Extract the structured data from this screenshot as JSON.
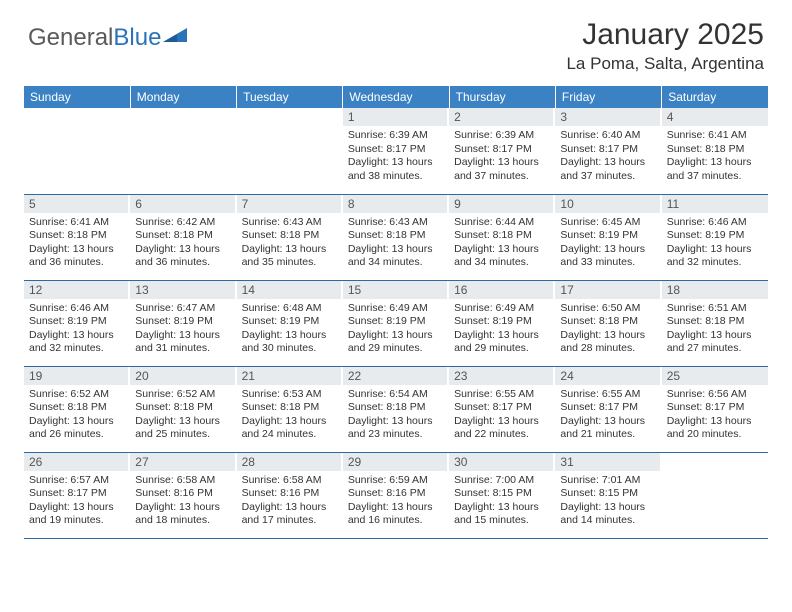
{
  "logo": {
    "text1": "General",
    "text2": "Blue"
  },
  "title": "January 2025",
  "location": "La Poma, Salta, Argentina",
  "theme": {
    "header_bg": "#3b82c4",
    "header_fg": "#ffffff",
    "daynum_bg": "#e8ebee",
    "border_color": "#2b6aa8",
    "logo_gray": "#5a5a5a",
    "logo_blue": "#2b73b8"
  },
  "weekdays": [
    "Sunday",
    "Monday",
    "Tuesday",
    "Wednesday",
    "Thursday",
    "Friday",
    "Saturday"
  ],
  "weeks": [
    [
      {
        "n": "",
        "lines": []
      },
      {
        "n": "",
        "lines": []
      },
      {
        "n": "",
        "lines": []
      },
      {
        "n": "1",
        "lines": [
          "Sunrise: 6:39 AM",
          "Sunset: 8:17 PM",
          "Daylight: 13 hours",
          "and 38 minutes."
        ]
      },
      {
        "n": "2",
        "lines": [
          "Sunrise: 6:39 AM",
          "Sunset: 8:17 PM",
          "Daylight: 13 hours",
          "and 37 minutes."
        ]
      },
      {
        "n": "3",
        "lines": [
          "Sunrise: 6:40 AM",
          "Sunset: 8:17 PM",
          "Daylight: 13 hours",
          "and 37 minutes."
        ]
      },
      {
        "n": "4",
        "lines": [
          "Sunrise: 6:41 AM",
          "Sunset: 8:18 PM",
          "Daylight: 13 hours",
          "and 37 minutes."
        ]
      }
    ],
    [
      {
        "n": "5",
        "lines": [
          "Sunrise: 6:41 AM",
          "Sunset: 8:18 PM",
          "Daylight: 13 hours",
          "and 36 minutes."
        ]
      },
      {
        "n": "6",
        "lines": [
          "Sunrise: 6:42 AM",
          "Sunset: 8:18 PM",
          "Daylight: 13 hours",
          "and 36 minutes."
        ]
      },
      {
        "n": "7",
        "lines": [
          "Sunrise: 6:43 AM",
          "Sunset: 8:18 PM",
          "Daylight: 13 hours",
          "and 35 minutes."
        ]
      },
      {
        "n": "8",
        "lines": [
          "Sunrise: 6:43 AM",
          "Sunset: 8:18 PM",
          "Daylight: 13 hours",
          "and 34 minutes."
        ]
      },
      {
        "n": "9",
        "lines": [
          "Sunrise: 6:44 AM",
          "Sunset: 8:18 PM",
          "Daylight: 13 hours",
          "and 34 minutes."
        ]
      },
      {
        "n": "10",
        "lines": [
          "Sunrise: 6:45 AM",
          "Sunset: 8:19 PM",
          "Daylight: 13 hours",
          "and 33 minutes."
        ]
      },
      {
        "n": "11",
        "lines": [
          "Sunrise: 6:46 AM",
          "Sunset: 8:19 PM",
          "Daylight: 13 hours",
          "and 32 minutes."
        ]
      }
    ],
    [
      {
        "n": "12",
        "lines": [
          "Sunrise: 6:46 AM",
          "Sunset: 8:19 PM",
          "Daylight: 13 hours",
          "and 32 minutes."
        ]
      },
      {
        "n": "13",
        "lines": [
          "Sunrise: 6:47 AM",
          "Sunset: 8:19 PM",
          "Daylight: 13 hours",
          "and 31 minutes."
        ]
      },
      {
        "n": "14",
        "lines": [
          "Sunrise: 6:48 AM",
          "Sunset: 8:19 PM",
          "Daylight: 13 hours",
          "and 30 minutes."
        ]
      },
      {
        "n": "15",
        "lines": [
          "Sunrise: 6:49 AM",
          "Sunset: 8:19 PM",
          "Daylight: 13 hours",
          "and 29 minutes."
        ]
      },
      {
        "n": "16",
        "lines": [
          "Sunrise: 6:49 AM",
          "Sunset: 8:19 PM",
          "Daylight: 13 hours",
          "and 29 minutes."
        ]
      },
      {
        "n": "17",
        "lines": [
          "Sunrise: 6:50 AM",
          "Sunset: 8:18 PM",
          "Daylight: 13 hours",
          "and 28 minutes."
        ]
      },
      {
        "n": "18",
        "lines": [
          "Sunrise: 6:51 AM",
          "Sunset: 8:18 PM",
          "Daylight: 13 hours",
          "and 27 minutes."
        ]
      }
    ],
    [
      {
        "n": "19",
        "lines": [
          "Sunrise: 6:52 AM",
          "Sunset: 8:18 PM",
          "Daylight: 13 hours",
          "and 26 minutes."
        ]
      },
      {
        "n": "20",
        "lines": [
          "Sunrise: 6:52 AM",
          "Sunset: 8:18 PM",
          "Daylight: 13 hours",
          "and 25 minutes."
        ]
      },
      {
        "n": "21",
        "lines": [
          "Sunrise: 6:53 AM",
          "Sunset: 8:18 PM",
          "Daylight: 13 hours",
          "and 24 minutes."
        ]
      },
      {
        "n": "22",
        "lines": [
          "Sunrise: 6:54 AM",
          "Sunset: 8:18 PM",
          "Daylight: 13 hours",
          "and 23 minutes."
        ]
      },
      {
        "n": "23",
        "lines": [
          "Sunrise: 6:55 AM",
          "Sunset: 8:17 PM",
          "Daylight: 13 hours",
          "and 22 minutes."
        ]
      },
      {
        "n": "24",
        "lines": [
          "Sunrise: 6:55 AM",
          "Sunset: 8:17 PM",
          "Daylight: 13 hours",
          "and 21 minutes."
        ]
      },
      {
        "n": "25",
        "lines": [
          "Sunrise: 6:56 AM",
          "Sunset: 8:17 PM",
          "Daylight: 13 hours",
          "and 20 minutes."
        ]
      }
    ],
    [
      {
        "n": "26",
        "lines": [
          "Sunrise: 6:57 AM",
          "Sunset: 8:17 PM",
          "Daylight: 13 hours",
          "and 19 minutes."
        ]
      },
      {
        "n": "27",
        "lines": [
          "Sunrise: 6:58 AM",
          "Sunset: 8:16 PM",
          "Daylight: 13 hours",
          "and 18 minutes."
        ]
      },
      {
        "n": "28",
        "lines": [
          "Sunrise: 6:58 AM",
          "Sunset: 8:16 PM",
          "Daylight: 13 hours",
          "and 17 minutes."
        ]
      },
      {
        "n": "29",
        "lines": [
          "Sunrise: 6:59 AM",
          "Sunset: 8:16 PM",
          "Daylight: 13 hours",
          "and 16 minutes."
        ]
      },
      {
        "n": "30",
        "lines": [
          "Sunrise: 7:00 AM",
          "Sunset: 8:15 PM",
          "Daylight: 13 hours",
          "and 15 minutes."
        ]
      },
      {
        "n": "31",
        "lines": [
          "Sunrise: 7:01 AM",
          "Sunset: 8:15 PM",
          "Daylight: 13 hours",
          "and 14 minutes."
        ]
      },
      {
        "n": "",
        "lines": []
      }
    ]
  ]
}
